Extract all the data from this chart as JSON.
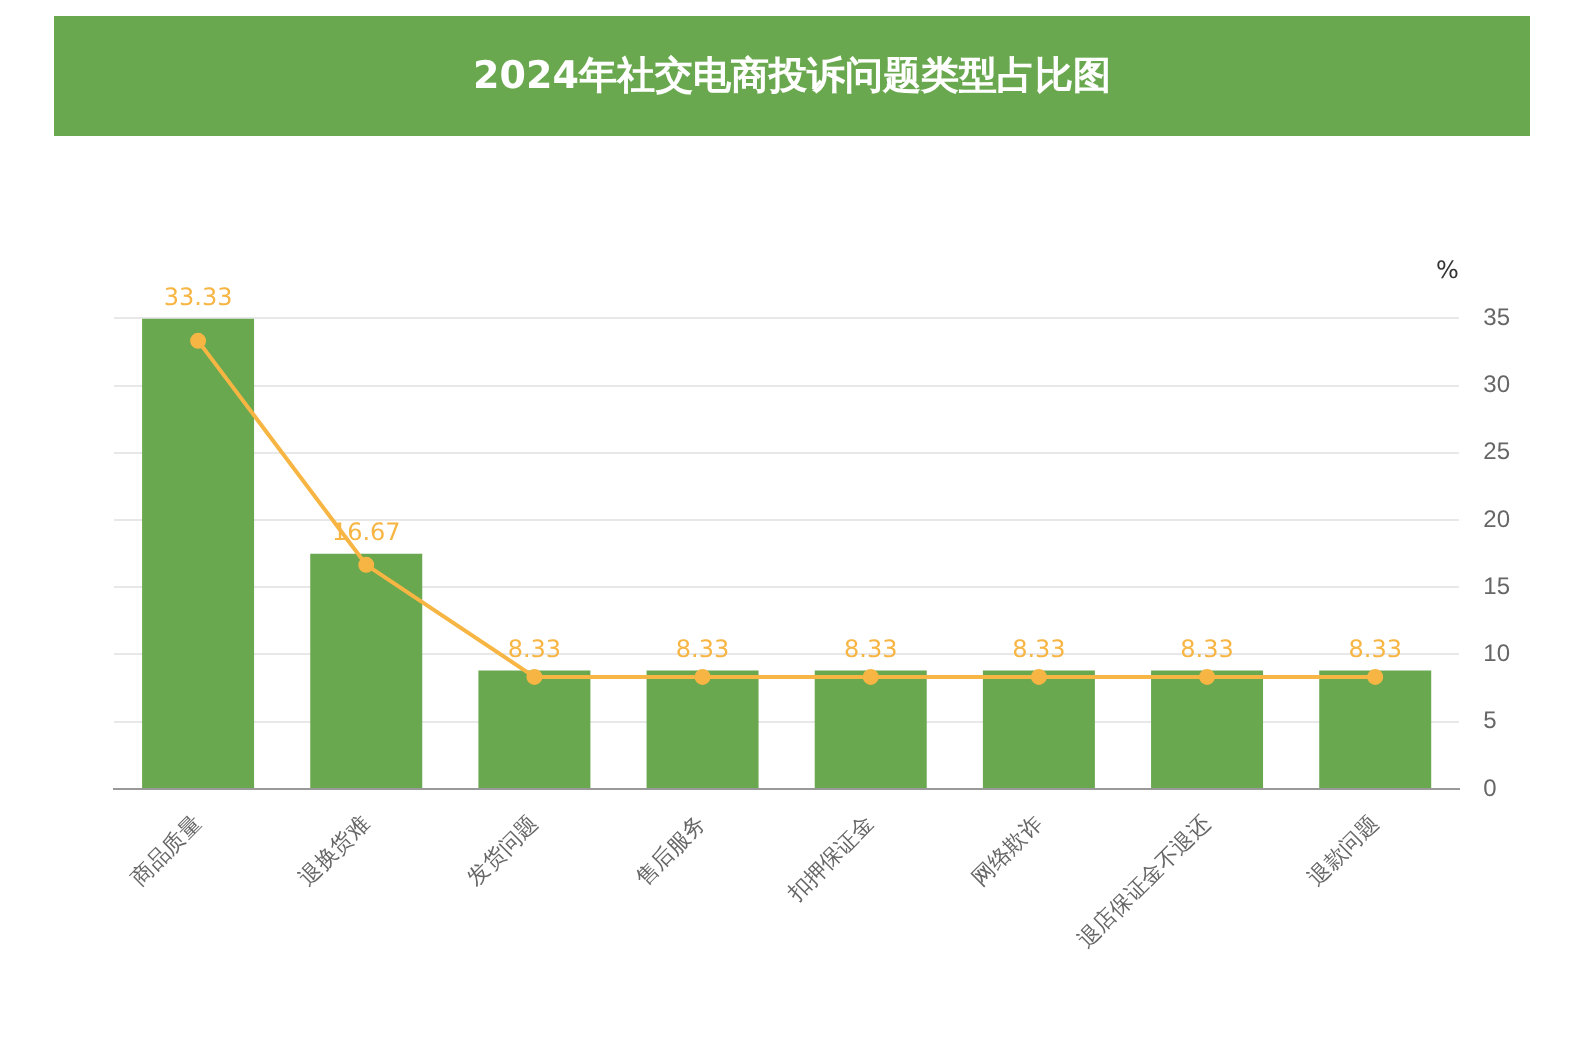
{
  "chart_data": {
    "type": "bar",
    "title": "2024年社交电商投诉问题类型占比图",
    "ylabel": "%",
    "categories": [
      "商品质量",
      "退换货难",
      "发货问题",
      "售后服务",
      "扣押保证金",
      "网络欺诈",
      "退店保证金不退还",
      "退款问题"
    ],
    "series": [
      {
        "color": "#6aa84f",
        "values": [
          35,
          17.5,
          8.8,
          8.8,
          8.8,
          8.8,
          8.8,
          8.8
        ]
      },
      {
        "type": "line",
        "color": "#f7b543",
        "values": [
          33.33,
          16.67,
          8.33,
          8.33,
          8.33,
          8.33,
          8.33,
          8.33
        ],
        "value_labels": [
          "33.33",
          "16.67",
          "8.33",
          "8.33",
          "8.33",
          "8.33",
          "8.33",
          "8.33"
        ]
      }
    ],
    "ylim": [
      0,
      35
    ],
    "yticks": [
      0,
      5,
      10,
      15,
      20,
      25,
      30,
      35
    ],
    "grid": "y",
    "legend": false,
    "marker": "circle",
    "line_style": "solid"
  }
}
